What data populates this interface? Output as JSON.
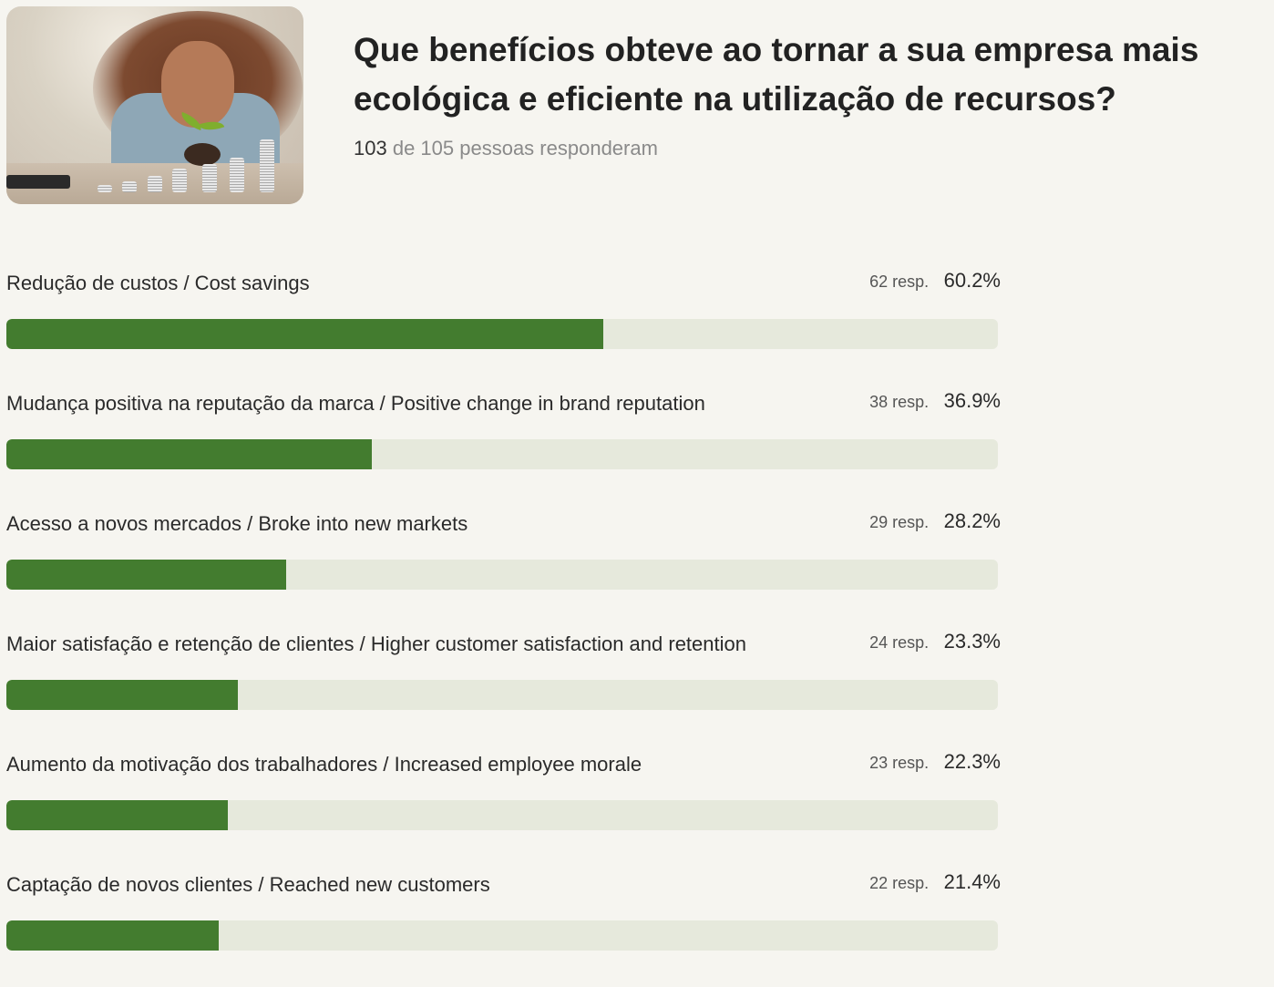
{
  "question": {
    "title": "Que benefícios obteve ao tornar a sua empresa mais ecológica e eficiente na utilização de recursos?",
    "answered_count": "103",
    "answered_text": "de 105 pessoas responderam"
  },
  "colors": {
    "bar_fill": "#437c2f",
    "bar_track": "#e6e9dc",
    "background": "#f6f5f0"
  },
  "chart_data": {
    "type": "bar",
    "orientation": "horizontal",
    "xlim": [
      0,
      100
    ],
    "categories": [
      "Redução de custos / Cost savings",
      "Mudança positiva na reputação da marca / Positive change in brand reputation",
      "Acesso a novos mercados / Broke into new markets",
      "Maior satisfação e retenção de clientes / Higher customer satisfaction and retention",
      "Aumento da motivação dos trabalhadores / Increased employee morale",
      "Captação de novos clientes / Reached new customers"
    ],
    "values": [
      60.2,
      36.9,
      28.2,
      23.3,
      22.3,
      21.4
    ],
    "responses_labels": [
      "62 resp.",
      "38 resp.",
      "29 resp.",
      "24 resp.",
      "23 resp.",
      "22 resp."
    ],
    "percent_labels": [
      "60.2%",
      "36.9%",
      "28.2%",
      "23.3%",
      "22.3%",
      "21.4%"
    ]
  }
}
